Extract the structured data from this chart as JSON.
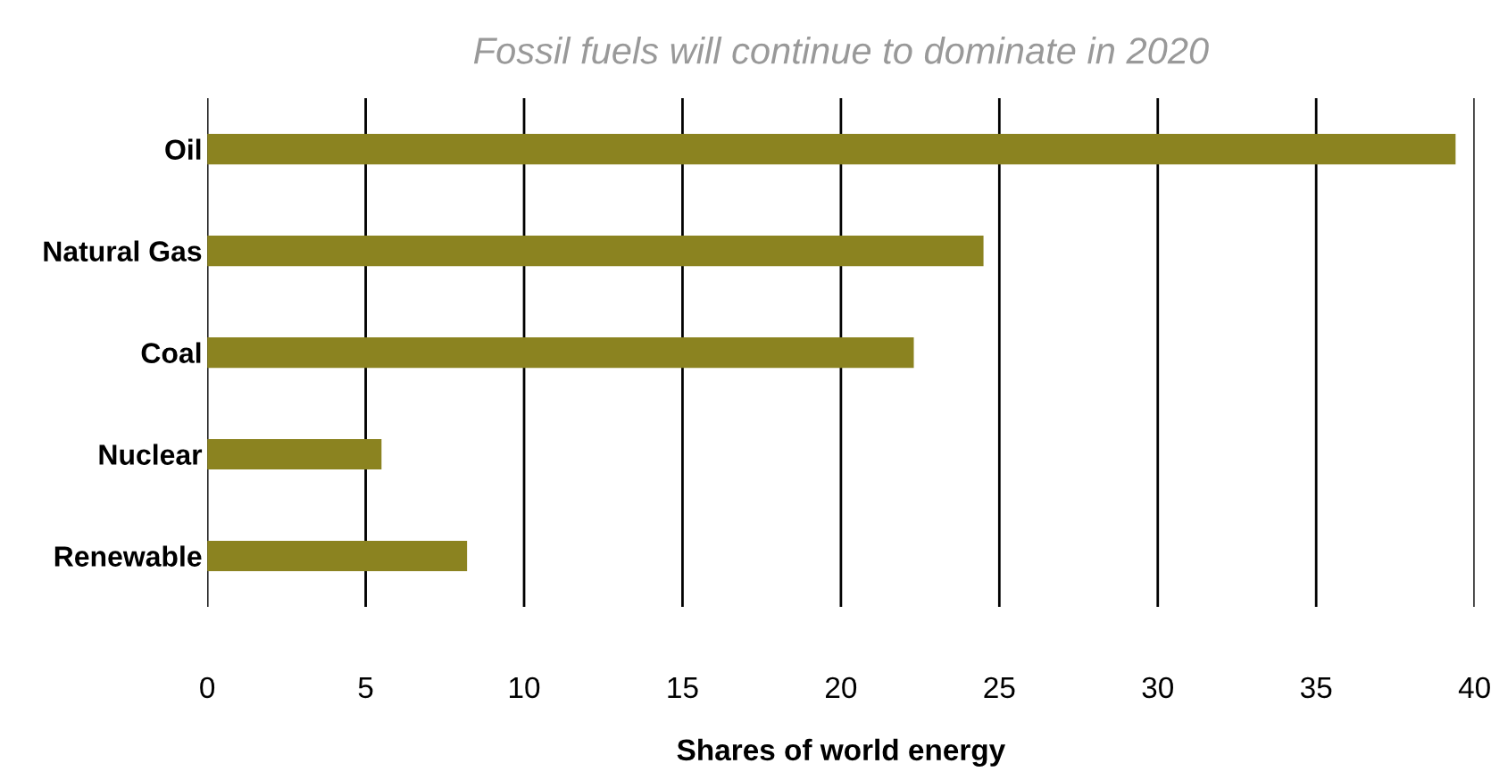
{
  "chart_data": {
    "type": "bar",
    "orientation": "horizontal",
    "title": "Fossil fuels will continue to dominate in 2020",
    "xlabel": "Shares of world energy",
    "categories": [
      "Oil",
      "Natural Gas",
      "Coal",
      "Nuclear",
      "Renewable"
    ],
    "values": [
      39.4,
      24.5,
      22.3,
      5.5,
      8.2
    ],
    "color": "#8b8320",
    "xlim": [
      0,
      40
    ],
    "xticks": [
      0,
      5,
      10,
      15,
      20,
      25,
      30,
      35,
      40
    ],
    "grid": "x",
    "legend": false
  }
}
